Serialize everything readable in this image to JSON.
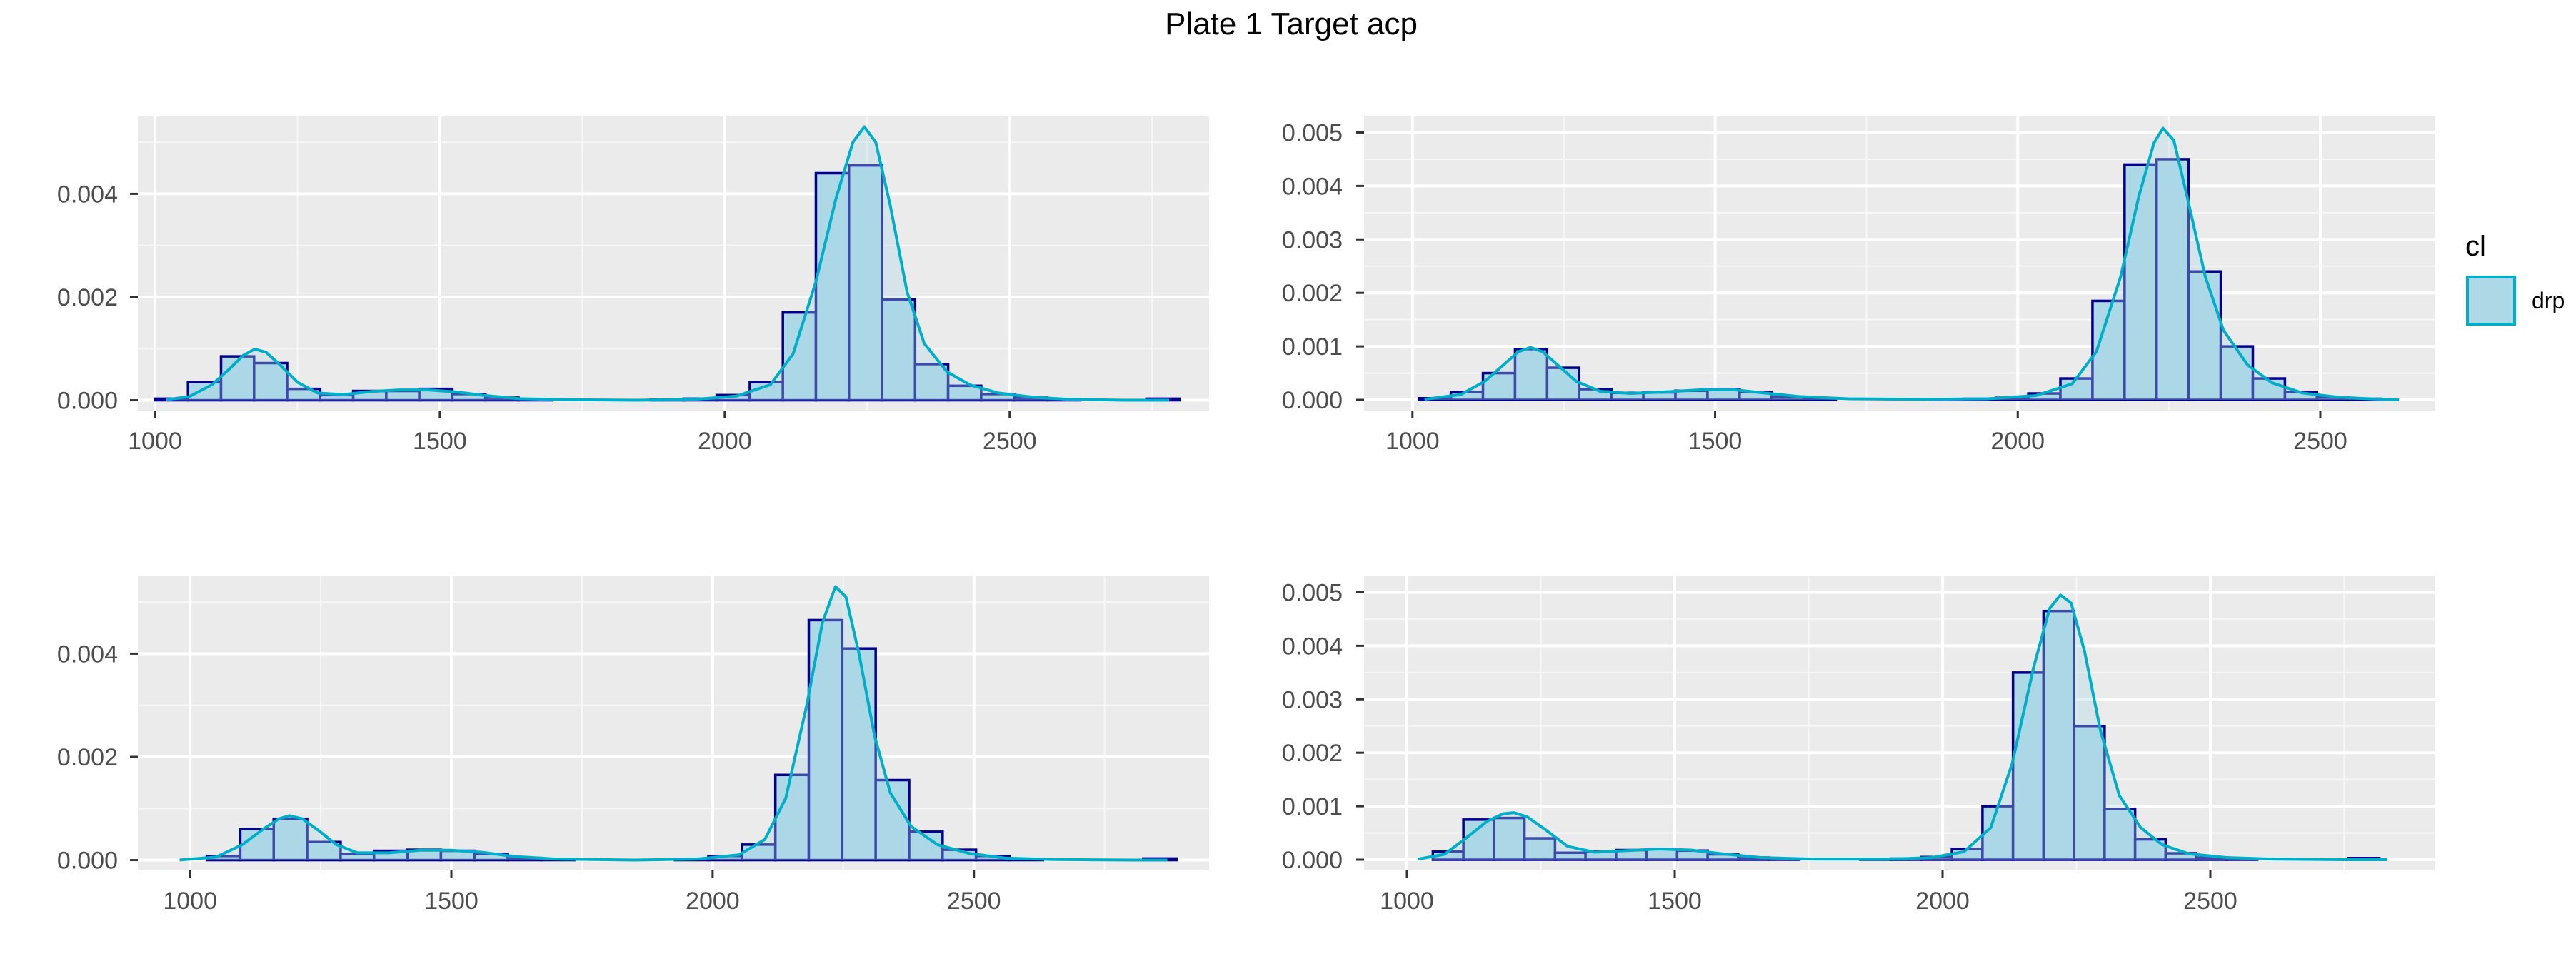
{
  "title": "Plate 1 Target acp",
  "colors": {
    "panel_background": "#ebebeb",
    "grid_major": "#ffffff",
    "grid_minor": "#f7f7f7",
    "bar_fill": "#add8e6",
    "bar_outline": "#00008b",
    "density_line": "#00aec7",
    "tick_text": "#4d4d4d"
  },
  "legend": {
    "title": "cl",
    "items": [
      {
        "label": "drp",
        "fill": "#add8e6",
        "stroke": "#00aec7"
      }
    ]
  },
  "chart_data": [
    {
      "type": "histogram",
      "panel": "top-left",
      "xlim": [
        970,
        2850
      ],
      "ylim": [
        -0.0002,
        0.0055
      ],
      "x_ticks": [
        1000,
        1500,
        2000,
        2500
      ],
      "x_tick_labels": [
        "1000",
        "1500",
        "2000",
        "2500"
      ],
      "y_ticks": [
        0,
        0.002,
        0.004
      ],
      "y_tick_labels": [
        "0.000",
        "0.002",
        "0.004"
      ],
      "bin_width": 58,
      "bins": [
        {
          "x": 1029,
          "y": 3e-05
        },
        {
          "x": 1087,
          "y": 0.00035
        },
        {
          "x": 1145,
          "y": 0.00085
        },
        {
          "x": 1203,
          "y": 0.00072
        },
        {
          "x": 1261,
          "y": 0.00022
        },
        {
          "x": 1319,
          "y": 0.0001
        },
        {
          "x": 1377,
          "y": 0.00018
        },
        {
          "x": 1435,
          "y": 0.00018
        },
        {
          "x": 1493,
          "y": 0.00022
        },
        {
          "x": 1551,
          "y": 0.00012
        },
        {
          "x": 1609,
          "y": 5e-05
        },
        {
          "x": 1667,
          "y": 2e-05
        },
        {
          "x": 1725,
          "y": 0
        },
        {
          "x": 1783,
          "y": 0
        },
        {
          "x": 1841,
          "y": 0
        },
        {
          "x": 1899,
          "y": 1e-05
        },
        {
          "x": 1957,
          "y": 3e-05
        },
        {
          "x": 2015,
          "y": 0.0001
        },
        {
          "x": 2073,
          "y": 0.00035
        },
        {
          "x": 2131,
          "y": 0.0017
        },
        {
          "x": 2189,
          "y": 0.0044
        },
        {
          "x": 2247,
          "y": 0.00455
        },
        {
          "x": 2305,
          "y": 0.00195
        },
        {
          "x": 2363,
          "y": 0.0007
        },
        {
          "x": 2421,
          "y": 0.00028
        },
        {
          "x": 2479,
          "y": 0.00012
        },
        {
          "x": 2537,
          "y": 5e-05
        },
        {
          "x": 2595,
          "y": 2e-05
        },
        {
          "x": 2653,
          "y": 0
        },
        {
          "x": 2711,
          "y": 0
        },
        {
          "x": 2769,
          "y": 3e-05
        }
      ],
      "density": [
        {
          "x": 1020,
          "y": 1e-05
        },
        {
          "x": 1060,
          "y": 7e-05
        },
        {
          "x": 1100,
          "y": 0.0003
        },
        {
          "x": 1130,
          "y": 0.0006
        },
        {
          "x": 1155,
          "y": 0.00087
        },
        {
          "x": 1175,
          "y": 0.00099
        },
        {
          "x": 1195,
          "y": 0.00093
        },
        {
          "x": 1220,
          "y": 0.00068
        },
        {
          "x": 1250,
          "y": 0.00035
        },
        {
          "x": 1285,
          "y": 0.00014
        },
        {
          "x": 1330,
          "y": 0.00011
        },
        {
          "x": 1380,
          "y": 0.00017
        },
        {
          "x": 1430,
          "y": 0.0002
        },
        {
          "x": 1480,
          "y": 0.0002
        },
        {
          "x": 1530,
          "y": 0.00016
        },
        {
          "x": 1580,
          "y": 9e-05
        },
        {
          "x": 1640,
          "y": 3e-05
        },
        {
          "x": 1720,
          "y": 1e-05
        },
        {
          "x": 1850,
          "y": 0.0
        },
        {
          "x": 1950,
          "y": 2e-05
        },
        {
          "x": 2020,
          "y": 8e-05
        },
        {
          "x": 2080,
          "y": 0.0003
        },
        {
          "x": 2120,
          "y": 0.0009
        },
        {
          "x": 2160,
          "y": 0.0023
        },
        {
          "x": 2195,
          "y": 0.0039
        },
        {
          "x": 2225,
          "y": 0.005
        },
        {
          "x": 2245,
          "y": 0.0053
        },
        {
          "x": 2265,
          "y": 0.005
        },
        {
          "x": 2290,
          "y": 0.0038
        },
        {
          "x": 2320,
          "y": 0.0021
        },
        {
          "x": 2350,
          "y": 0.0011
        },
        {
          "x": 2390,
          "y": 0.00055
        },
        {
          "x": 2430,
          "y": 0.0003
        },
        {
          "x": 2480,
          "y": 0.00014
        },
        {
          "x": 2540,
          "y": 6e-05
        },
        {
          "x": 2600,
          "y": 2e-05
        },
        {
          "x": 2700,
          "y": 0.0
        },
        {
          "x": 2780,
          "y": 0.0
        }
      ]
    },
    {
      "type": "histogram",
      "panel": "top-right",
      "xlim": [
        920,
        2690
      ],
      "ylim": [
        -0.0002,
        0.0053
      ],
      "x_ticks": [
        1000,
        1500,
        2000,
        2500
      ],
      "x_tick_labels": [
        "1000",
        "1500",
        "2000",
        "2500"
      ],
      "y_ticks": [
        0,
        0.001,
        0.002,
        0.003,
        0.004,
        0.005
      ],
      "y_tick_labels": [
        "0.000",
        "0.001",
        "0.002",
        "0.003",
        "0.004",
        "0.005"
      ],
      "bin_width": 53,
      "bins": [
        {
          "x": 1037,
          "y": 3e-05
        },
        {
          "x": 1090,
          "y": 0.00015
        },
        {
          "x": 1143,
          "y": 0.0005
        },
        {
          "x": 1196,
          "y": 0.00095
        },
        {
          "x": 1249,
          "y": 0.0006
        },
        {
          "x": 1302,
          "y": 0.0002
        },
        {
          "x": 1355,
          "y": 0.00013
        },
        {
          "x": 1408,
          "y": 0.00014
        },
        {
          "x": 1461,
          "y": 0.00017
        },
        {
          "x": 1514,
          "y": 0.0002
        },
        {
          "x": 1567,
          "y": 0.00015
        },
        {
          "x": 1620,
          "y": 6e-05
        },
        {
          "x": 1673,
          "y": 2e-05
        },
        {
          "x": 1726,
          "y": 0
        },
        {
          "x": 1779,
          "y": 0
        },
        {
          "x": 1832,
          "y": 0
        },
        {
          "x": 1885,
          "y": 1e-05
        },
        {
          "x": 1938,
          "y": 2e-05
        },
        {
          "x": 1991,
          "y": 4e-05
        },
        {
          "x": 2044,
          "y": 0.00012
        },
        {
          "x": 2097,
          "y": 0.0004
        },
        {
          "x": 2150,
          "y": 0.00185
        },
        {
          "x": 2203,
          "y": 0.0044
        },
        {
          "x": 2256,
          "y": 0.0045
        },
        {
          "x": 2309,
          "y": 0.0024
        },
        {
          "x": 2362,
          "y": 0.001
        },
        {
          "x": 2415,
          "y": 0.0004
        },
        {
          "x": 2468,
          "y": 0.00015
        },
        {
          "x": 2521,
          "y": 5e-05
        },
        {
          "x": 2574,
          "y": 2e-05
        }
      ],
      "density": [
        {
          "x": 1020,
          "y": 1e-05
        },
        {
          "x": 1080,
          "y": 0.0001
        },
        {
          "x": 1120,
          "y": 0.00035
        },
        {
          "x": 1150,
          "y": 0.00065
        },
        {
          "x": 1175,
          "y": 0.0009
        },
        {
          "x": 1195,
          "y": 0.00098
        },
        {
          "x": 1215,
          "y": 0.0009
        },
        {
          "x": 1240,
          "y": 0.00065
        },
        {
          "x": 1270,
          "y": 0.00035
        },
        {
          "x": 1310,
          "y": 0.00016
        },
        {
          "x": 1360,
          "y": 0.00012
        },
        {
          "x": 1420,
          "y": 0.00015
        },
        {
          "x": 1480,
          "y": 0.00019
        },
        {
          "x": 1530,
          "y": 0.00019
        },
        {
          "x": 1580,
          "y": 0.00013
        },
        {
          "x": 1640,
          "y": 6e-05
        },
        {
          "x": 1720,
          "y": 2e-05
        },
        {
          "x": 1850,
          "y": 1e-05
        },
        {
          "x": 1950,
          "y": 2e-05
        },
        {
          "x": 2030,
          "y": 8e-05
        },
        {
          "x": 2090,
          "y": 0.0003
        },
        {
          "x": 2130,
          "y": 0.0009
        },
        {
          "x": 2170,
          "y": 0.0023
        },
        {
          "x": 2200,
          "y": 0.0038
        },
        {
          "x": 2225,
          "y": 0.0048
        },
        {
          "x": 2240,
          "y": 0.00508
        },
        {
          "x": 2258,
          "y": 0.00485
        },
        {
          "x": 2280,
          "y": 0.0038
        },
        {
          "x": 2310,
          "y": 0.0023
        },
        {
          "x": 2340,
          "y": 0.0013
        },
        {
          "x": 2380,
          "y": 0.00065
        },
        {
          "x": 2420,
          "y": 0.00032
        },
        {
          "x": 2470,
          "y": 0.00013
        },
        {
          "x": 2530,
          "y": 5e-05
        },
        {
          "x": 2600,
          "y": 1e-05
        },
        {
          "x": 2630,
          "y": 0.0
        }
      ]
    },
    {
      "type": "histogram",
      "panel": "bottom-left",
      "xlim": [
        900,
        2950
      ],
      "ylim": [
        -0.0002,
        0.0055
      ],
      "x_ticks": [
        1000,
        1500,
        2000,
        2500
      ],
      "x_tick_labels": [
        "1000",
        "1500",
        "2000",
        "2500"
      ],
      "y_ticks": [
        0,
        0.002,
        0.004
      ],
      "y_tick_labels": [
        "0.000",
        "0.002",
        "0.004"
      ],
      "bin_width": 64,
      "bins": [
        {
          "x": 1000,
          "y": 0
        },
        {
          "x": 1064,
          "y": 8e-05
        },
        {
          "x": 1128,
          "y": 0.0006
        },
        {
          "x": 1192,
          "y": 0.0008
        },
        {
          "x": 1256,
          "y": 0.00035
        },
        {
          "x": 1320,
          "y": 0.00012
        },
        {
          "x": 1384,
          "y": 0.00018
        },
        {
          "x": 1448,
          "y": 0.0002
        },
        {
          "x": 1512,
          "y": 0.00018
        },
        {
          "x": 1576,
          "y": 0.00012
        },
        {
          "x": 1640,
          "y": 4e-05
        },
        {
          "x": 1704,
          "y": 1e-05
        },
        {
          "x": 1768,
          "y": 0
        },
        {
          "x": 1832,
          "y": 0
        },
        {
          "x": 1896,
          "y": 0
        },
        {
          "x": 1960,
          "y": 2e-05
        },
        {
          "x": 2024,
          "y": 8e-05
        },
        {
          "x": 2088,
          "y": 0.0003
        },
        {
          "x": 2152,
          "y": 0.00165
        },
        {
          "x": 2216,
          "y": 0.00465
        },
        {
          "x": 2280,
          "y": 0.0041
        },
        {
          "x": 2344,
          "y": 0.00155
        },
        {
          "x": 2408,
          "y": 0.00055
        },
        {
          "x": 2472,
          "y": 0.0002
        },
        {
          "x": 2536,
          "y": 8e-05
        },
        {
          "x": 2600,
          "y": 2e-05
        },
        {
          "x": 2664,
          "y": 0
        },
        {
          "x": 2728,
          "y": 0
        },
        {
          "x": 2792,
          "y": 0
        },
        {
          "x": 2856,
          "y": 3e-05
        }
      ],
      "density": [
        {
          "x": 980,
          "y": 0.0
        },
        {
          "x": 1050,
          "y": 6e-05
        },
        {
          "x": 1100,
          "y": 0.0003
        },
        {
          "x": 1140,
          "y": 0.0006
        },
        {
          "x": 1170,
          "y": 0.0008
        },
        {
          "x": 1190,
          "y": 0.00086
        },
        {
          "x": 1215,
          "y": 0.0008
        },
        {
          "x": 1245,
          "y": 0.00058
        },
        {
          "x": 1280,
          "y": 0.0003
        },
        {
          "x": 1320,
          "y": 0.00014
        },
        {
          "x": 1380,
          "y": 0.00014
        },
        {
          "x": 1440,
          "y": 0.00019
        },
        {
          "x": 1500,
          "y": 0.00019
        },
        {
          "x": 1560,
          "y": 0.00015
        },
        {
          "x": 1620,
          "y": 7e-05
        },
        {
          "x": 1700,
          "y": 2e-05
        },
        {
          "x": 1850,
          "y": 0.0
        },
        {
          "x": 1970,
          "y": 2e-05
        },
        {
          "x": 2050,
          "y": 0.0001
        },
        {
          "x": 2100,
          "y": 0.0004
        },
        {
          "x": 2140,
          "y": 0.0012
        },
        {
          "x": 2180,
          "y": 0.003
        },
        {
          "x": 2210,
          "y": 0.0046
        },
        {
          "x": 2235,
          "y": 0.0053
        },
        {
          "x": 2255,
          "y": 0.0051
        },
        {
          "x": 2280,
          "y": 0.004
        },
        {
          "x": 2310,
          "y": 0.0024
        },
        {
          "x": 2340,
          "y": 0.0013
        },
        {
          "x": 2380,
          "y": 0.00065
        },
        {
          "x": 2430,
          "y": 0.0003
        },
        {
          "x": 2490,
          "y": 0.00013
        },
        {
          "x": 2560,
          "y": 4e-05
        },
        {
          "x": 2650,
          "y": 1e-05
        },
        {
          "x": 2800,
          "y": 0.0
        },
        {
          "x": 2870,
          "y": 0.0
        }
      ]
    },
    {
      "type": "histogram",
      "panel": "bottom-right",
      "xlim": [
        920,
        2920
      ],
      "ylim": [
        -0.0002,
        0.0053
      ],
      "x_ticks": [
        1000,
        1500,
        2000,
        2500
      ],
      "x_tick_labels": [
        "1000",
        "1500",
        "2000",
        "2500"
      ],
      "y_ticks": [
        0,
        0.001,
        0.002,
        0.003,
        0.004,
        0.005
      ],
      "y_tick_labels": [
        "0.000",
        "0.001",
        "0.002",
        "0.003",
        "0.004",
        "0.005"
      ],
      "bin_width": 57,
      "bins": [
        {
          "x": 1020,
          "y": 0
        },
        {
          "x": 1077,
          "y": 0.00015
        },
        {
          "x": 1134,
          "y": 0.00075
        },
        {
          "x": 1191,
          "y": 0.00078
        },
        {
          "x": 1248,
          "y": 0.0004
        },
        {
          "x": 1305,
          "y": 0.00013
        },
        {
          "x": 1362,
          "y": 0.00015
        },
        {
          "x": 1419,
          "y": 0.00018
        },
        {
          "x": 1476,
          "y": 0.0002
        },
        {
          "x": 1533,
          "y": 0.00017
        },
        {
          "x": 1590,
          "y": 0.0001
        },
        {
          "x": 1647,
          "y": 4e-05
        },
        {
          "x": 1704,
          "y": 1e-05
        },
        {
          "x": 1761,
          "y": 0
        },
        {
          "x": 1818,
          "y": 0
        },
        {
          "x": 1875,
          "y": 1e-05
        },
        {
          "x": 1932,
          "y": 2e-05
        },
        {
          "x": 1989,
          "y": 5e-05
        },
        {
          "x": 2046,
          "y": 0.0002
        },
        {
          "x": 2103,
          "y": 0.001
        },
        {
          "x": 2160,
          "y": 0.0035
        },
        {
          "x": 2217,
          "y": 0.00465
        },
        {
          "x": 2274,
          "y": 0.0025
        },
        {
          "x": 2331,
          "y": 0.00095
        },
        {
          "x": 2388,
          "y": 0.00038
        },
        {
          "x": 2445,
          "y": 0.00012
        },
        {
          "x": 2502,
          "y": 4e-05
        },
        {
          "x": 2559,
          "y": 1e-05
        },
        {
          "x": 2616,
          "y": 0
        },
        {
          "x": 2673,
          "y": 0
        },
        {
          "x": 2730,
          "y": 0
        },
        {
          "x": 2787,
          "y": 3e-05
        }
      ],
      "density": [
        {
          "x": 1020,
          "y": 1e-05
        },
        {
          "x": 1070,
          "y": 0.0001
        },
        {
          "x": 1110,
          "y": 0.0004
        },
        {
          "x": 1150,
          "y": 0.00072
        },
        {
          "x": 1180,
          "y": 0.00086
        },
        {
          "x": 1200,
          "y": 0.00088
        },
        {
          "x": 1225,
          "y": 0.0008
        },
        {
          "x": 1260,
          "y": 0.00055
        },
        {
          "x": 1300,
          "y": 0.00025
        },
        {
          "x": 1350,
          "y": 0.00014
        },
        {
          "x": 1410,
          "y": 0.00017
        },
        {
          "x": 1470,
          "y": 0.0002
        },
        {
          "x": 1530,
          "y": 0.00018
        },
        {
          "x": 1590,
          "y": 0.00011
        },
        {
          "x": 1660,
          "y": 4e-05
        },
        {
          "x": 1760,
          "y": 1e-05
        },
        {
          "x": 1900,
          "y": 1e-05
        },
        {
          "x": 1980,
          "y": 4e-05
        },
        {
          "x": 2040,
          "y": 0.00015
        },
        {
          "x": 2090,
          "y": 0.0006
        },
        {
          "x": 2130,
          "y": 0.0018
        },
        {
          "x": 2170,
          "y": 0.0036
        },
        {
          "x": 2200,
          "y": 0.0047
        },
        {
          "x": 2220,
          "y": 0.00495
        },
        {
          "x": 2240,
          "y": 0.0048
        },
        {
          "x": 2265,
          "y": 0.0039
        },
        {
          "x": 2295,
          "y": 0.0024
        },
        {
          "x": 2330,
          "y": 0.0012
        },
        {
          "x": 2370,
          "y": 0.0006
        },
        {
          "x": 2410,
          "y": 0.00028
        },
        {
          "x": 2460,
          "y": 0.00011
        },
        {
          "x": 2530,
          "y": 4e-05
        },
        {
          "x": 2620,
          "y": 1e-05
        },
        {
          "x": 2750,
          "y": 0.0
        },
        {
          "x": 2830,
          "y": 0.0
        }
      ]
    }
  ]
}
